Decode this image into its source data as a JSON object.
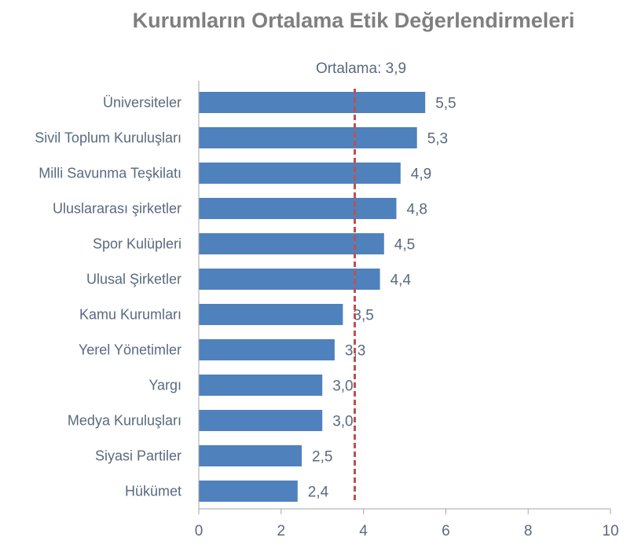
{
  "chart_data": {
    "type": "bar",
    "orientation": "horizontal",
    "title": "Kurumların Ortalama  Etik Değerlendirmeleri",
    "categories": [
      "Üniversiteler",
      "Sivil Toplum Kuruluşları",
      "Milli Savunma Teşkilatı",
      "Uluslararası şirketler",
      "Spor Kulüpleri",
      "Ulusal Şirketler",
      "Kamu Kurumları",
      "Yerel Yönetimler",
      "Yargı",
      "Medya Kuruluşları",
      "Siyasi Partiler",
      "Hükümet"
    ],
    "values": [
      5.5,
      5.3,
      4.9,
      4.8,
      4.5,
      4.4,
      3.5,
      3.3,
      3.0,
      3.0,
      2.5,
      2.4
    ],
    "value_labels": [
      "5,5",
      "5,3",
      "4,9",
      "4,8",
      "4,5",
      "4,4",
      "3,5",
      "3,3",
      "3,0",
      "3,0",
      "2,5",
      "2,4"
    ],
    "xlim": [
      0,
      10
    ],
    "xticks": [
      0,
      2,
      4,
      6,
      8,
      10
    ],
    "xtick_labels": [
      "0",
      "2",
      "4",
      "6",
      "8",
      "10"
    ],
    "grid": false,
    "reference_line": {
      "label": "Ortalama: 3,9",
      "style": "dashed",
      "color": "#c0504d"
    },
    "bar_color": "#4f81bd",
    "axis_color": "#a6a6a6",
    "text_color": "#5a6a7e"
  }
}
